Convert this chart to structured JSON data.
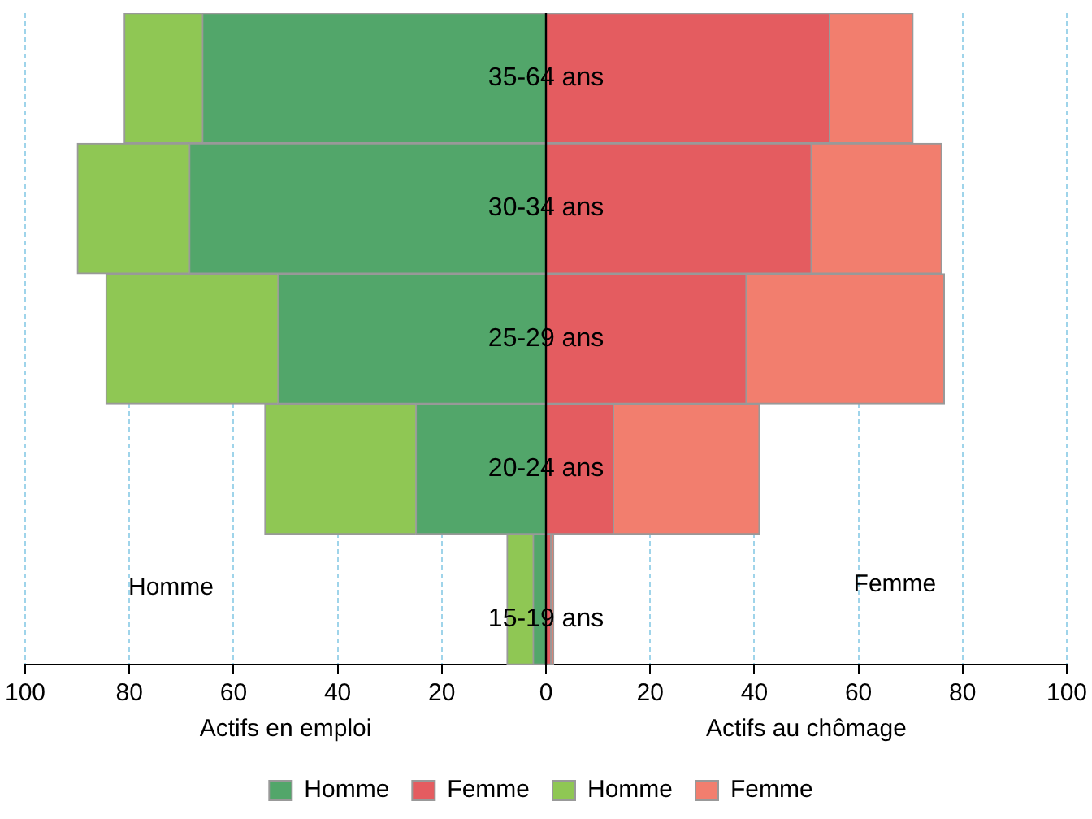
{
  "chart_data": {
    "type": "bar",
    "orientation": "horizontal",
    "stacked": true,
    "categories": [
      "35-64 ans",
      "30-34 ans",
      "25-29 ans",
      "20-24 ans",
      "15-19 ans"
    ],
    "series": [
      {
        "name": "Homme",
        "color": "#52a66a",
        "values": [
          -66,
          -68.5,
          -51.5,
          -25,
          -2.5
        ]
      },
      {
        "name": "Femme",
        "color": "#e45c60",
        "values": [
          54.5,
          51,
          38.5,
          13,
          1
        ]
      },
      {
        "name": "Homme",
        "color": "#8fc754",
        "values": [
          -15,
          -21.5,
          -33,
          -29,
          -5
        ]
      },
      {
        "name": "Femme",
        "color": "#f27e6e",
        "values": [
          16,
          25,
          38,
          28,
          0.5
        ]
      }
    ],
    "xlim": [
      -100,
      100
    ],
    "xticks": [
      {
        "value": -100,
        "label": "100"
      },
      {
        "value": -80,
        "label": "80"
      },
      {
        "value": -60,
        "label": "60"
      },
      {
        "value": -40,
        "label": "40"
      },
      {
        "value": -20,
        "label": "20"
      },
      0,
      20,
      40,
      60,
      80,
      100
    ],
    "xlabel": "Actifs en emploi",
    "annotations": [
      "Homme",
      "Femme",
      "Actifs au chômage"
    ],
    "grid": "x",
    "legend": "bottom"
  }
}
